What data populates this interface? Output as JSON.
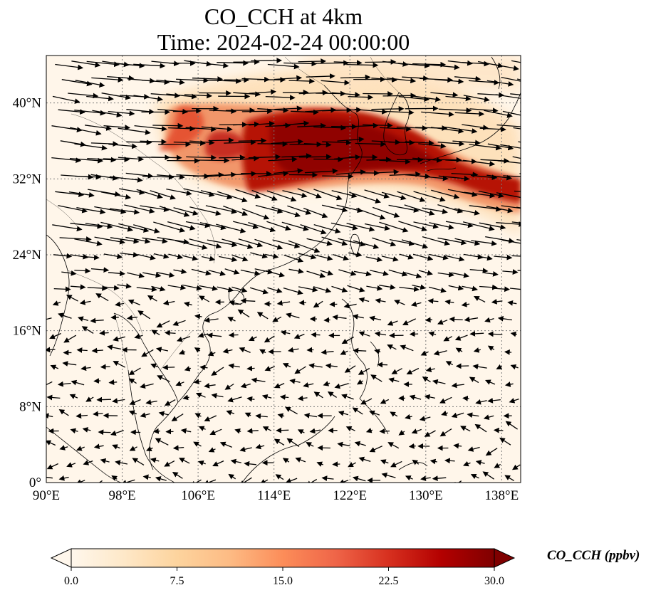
{
  "title_line1": "CO_CCH at 4km",
  "title_line2": "Time: 2024-02-24 00:00:00",
  "colorbar": {
    "label": "CO_CCH (ppbv)",
    "ticks": [
      "0.0",
      "7.5",
      "15.0",
      "22.5",
      "30.0"
    ],
    "min": 0,
    "max": 30,
    "extend": "both",
    "colormap": "OrRd",
    "colors": [
      "#fff7ec",
      "#fee8c8",
      "#fdd49e",
      "#fdbb84",
      "#fc8d59",
      "#ef6548",
      "#d7301f",
      "#b30000",
      "#7f0000"
    ]
  },
  "map": {
    "lon_labels": [
      "90°E",
      "98°E",
      "106°E",
      "114°E",
      "122°E",
      "130°E",
      "138°E"
    ],
    "lat_labels": [
      "0°",
      "8°N",
      "16°N",
      "24°N",
      "32°N",
      "40°N"
    ],
    "gridlines": "dotted",
    "variable": "CO_CCH",
    "level": "4km",
    "wind_vectors": true
  }
}
